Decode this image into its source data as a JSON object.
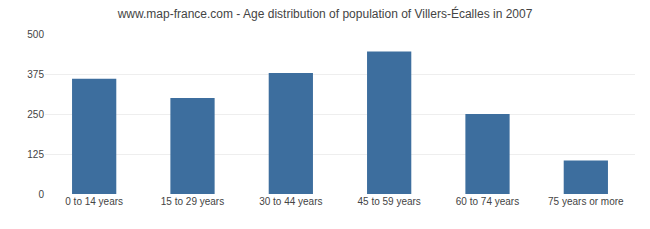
{
  "chart_data": {
    "type": "bar",
    "title": "www.map-france.com - Age distribution of population of Villers-Écalles in 2007",
    "categories": [
      "0 to 14 years",
      "15 to 29 years",
      "30 to 44 years",
      "45 to 59 years",
      "60 to 74 years",
      "75 years or more"
    ],
    "values": [
      360,
      300,
      378,
      445,
      250,
      105
    ],
    "color": "#3d6e9e",
    "ylim": [
      0,
      500
    ],
    "yticks": [
      0,
      125,
      250,
      375,
      500
    ],
    "grid": true
  }
}
